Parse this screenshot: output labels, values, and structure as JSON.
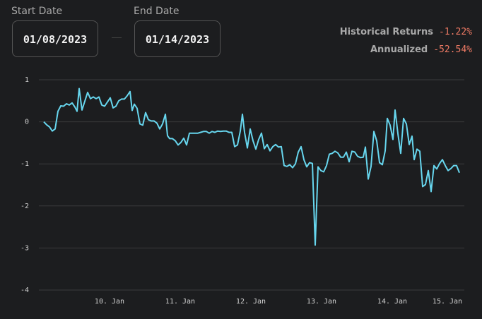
{
  "start_date": {
    "label": "Start Date",
    "value": "01/08/2023"
  },
  "end_date": {
    "label": "End Date",
    "value": "01/14/2023"
  },
  "stats": [
    {
      "label": "Historical Returns",
      "value": "-1.22%"
    },
    {
      "label": "Annualized",
      "value": "-52.54%"
    }
  ],
  "chart_data": {
    "type": "line",
    "x": [
      9.07,
      9.11,
      9.15,
      9.19,
      9.23,
      9.27,
      9.31,
      9.35,
      9.39,
      9.43,
      9.47,
      9.51,
      9.54,
      9.57,
      9.61,
      9.65,
      9.69,
      9.73,
      9.77,
      9.81,
      9.85,
      9.89,
      9.93,
      9.97,
      10.01,
      10.05,
      10.09,
      10.13,
      10.17,
      10.21,
      10.25,
      10.29,
      10.32,
      10.35,
      10.39,
      10.43,
      10.47,
      10.51,
      10.55,
      10.59,
      10.63,
      10.67,
      10.71,
      10.75,
      10.79,
      10.82,
      10.85,
      10.89,
      10.93,
      10.97,
      11.01,
      11.05,
      11.09,
      11.13,
      11.17,
      11.21,
      11.25,
      11.29,
      11.33,
      11.37,
      11.41,
      11.45,
      11.49,
      11.53,
      11.57,
      11.61,
      11.65,
      11.69,
      11.73,
      11.77,
      11.81,
      11.85,
      11.88,
      11.91,
      11.95,
      11.99,
      12.03,
      12.07,
      12.11,
      12.15,
      12.19,
      12.23,
      12.27,
      12.31,
      12.35,
      12.39,
      12.43,
      12.47,
      12.51,
      12.55,
      12.59,
      12.63,
      12.67,
      12.71,
      12.75,
      12.79,
      12.83,
      12.87,
      12.91,
      12.95,
      12.99,
      13.03,
      13.07,
      13.11,
      13.15,
      13.19,
      13.23,
      13.27,
      13.31,
      13.35,
      13.39,
      13.43,
      13.47,
      13.51,
      13.55,
      13.59,
      13.62,
      13.66,
      13.7,
      13.74,
      13.78,
      13.82,
      13.86,
      13.9,
      13.93,
      13.97,
      14.01,
      14.04,
      14.08,
      14.12,
      14.16,
      14.2,
      14.24,
      14.28,
      14.31,
      14.35,
      14.39,
      14.43,
      14.47,
      14.51,
      14.55,
      14.59,
      14.63,
      14.67,
      14.71,
      14.75,
      14.79,
      14.83,
      14.87,
      14.91,
      14.95
    ],
    "series": [
      {
        "color": "#67d6ee",
        "values": [
          0,
          -0.07,
          -0.12,
          -0.22,
          -0.17,
          0.25,
          0.38,
          0.37,
          0.43,
          0.4,
          0.45,
          0.35,
          0.25,
          0.79,
          0.28,
          0.49,
          0.7,
          0.55,
          0.59,
          0.55,
          0.59,
          0.4,
          0.37,
          0.47,
          0.57,
          0.33,
          0.37,
          0.5,
          0.54,
          0.54,
          0.62,
          0.72,
          0.27,
          0.42,
          0.32,
          -0.05,
          -0.08,
          0.22,
          0.05,
          0.02,
          0.02,
          -0.03,
          -0.17,
          -0.05,
          0.18,
          -0.33,
          -0.4,
          -0.4,
          -0.45,
          -0.55,
          -0.49,
          -0.39,
          -0.55,
          -0.27,
          -0.27,
          -0.27,
          -0.27,
          -0.25,
          -0.23,
          -0.23,
          -0.27,
          -0.23,
          -0.25,
          -0.22,
          -0.23,
          -0.22,
          -0.22,
          -0.25,
          -0.25,
          -0.59,
          -0.55,
          -0.22,
          0.18,
          -0.25,
          -0.62,
          -0.17,
          -0.45,
          -0.65,
          -0.42,
          -0.27,
          -0.64,
          -0.54,
          -0.69,
          -0.59,
          -0.54,
          -0.6,
          -0.59,
          -1.04,
          -1.06,
          -1.02,
          -1.09,
          -1.0,
          -0.72,
          -0.59,
          -0.9,
          -1.07,
          -0.97,
          -0.99,
          -2.93,
          -1.07,
          -1.16,
          -1.19,
          -1.04,
          -0.77,
          -0.75,
          -0.7,
          -0.74,
          -0.84,
          -0.84,
          -0.72,
          -0.95,
          -0.7,
          -0.72,
          -0.82,
          -0.85,
          -0.84,
          -0.6,
          -1.36,
          -1.06,
          -0.23,
          -0.45,
          -0.97,
          -1.02,
          -0.69,
          0.08,
          -0.08,
          -0.42,
          0.28,
          -0.28,
          -0.75,
          0.08,
          -0.05,
          -0.54,
          -0.34,
          -0.9,
          -0.65,
          -0.7,
          -1.54,
          -1.49,
          -1.16,
          -1.66,
          -1.04,
          -1.12,
          -0.99,
          -0.9,
          -1.04,
          -1.16,
          -1.11,
          -1.04,
          -1.04,
          -1.21
        ]
      }
    ],
    "xlim": [
      9,
      15.02
    ],
    "xticks": [
      {
        "value": 10,
        "label": "10. Jan"
      },
      {
        "value": 11,
        "label": "11. Jan"
      },
      {
        "value": 12,
        "label": "12. Jan"
      },
      {
        "value": 13,
        "label": "13. Jan"
      },
      {
        "value": 14,
        "label": "14. Jan"
      },
      {
        "value": 15,
        "label": "15. Jan"
      }
    ],
    "ylim": [
      -4,
      1
    ],
    "yticks": [
      1,
      0,
      -1,
      -2,
      -3,
      -4
    ],
    "grid": true
  }
}
